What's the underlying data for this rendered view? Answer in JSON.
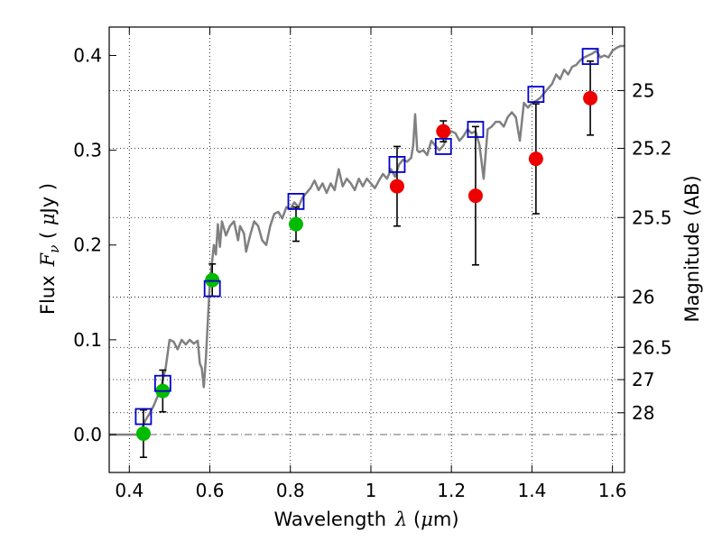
{
  "chart_data": {
    "type": "scatter",
    "xlabel": {
      "prefix": "Wavelength",
      "symbol": "λ",
      "unit_open": " (",
      "unit_symbol": "μ",
      "unit_rest": "m)"
    },
    "ylabel": {
      "prefix": "Flux",
      "symbol": "F",
      "subscript": "ν",
      "unit_open": " ( ",
      "unit_symbol": "μ",
      "unit_rest": "Jy )"
    },
    "y2label": "Magnitude (AB)",
    "xlim": [
      0.35,
      1.63
    ],
    "ylim": [
      -0.04,
      0.43
    ],
    "x_ticks": [
      {
        "value": 0.4,
        "label": "0.4"
      },
      {
        "value": 0.6,
        "label": "0.6"
      },
      {
        "value": 0.8,
        "label": "0.8"
      },
      {
        "value": 1.0,
        "label": "1"
      },
      {
        "value": 1.2,
        "label": "1.2"
      },
      {
        "value": 1.4,
        "label": "1.4"
      },
      {
        "value": 1.6,
        "label": "1.6"
      }
    ],
    "y_ticks": [
      {
        "value": 0.0,
        "label": "0.0"
      },
      {
        "value": 0.1,
        "label": "0.1"
      },
      {
        "value": 0.2,
        "label": "0.2"
      },
      {
        "value": 0.3,
        "label": "0.3"
      },
      {
        "value": 0.4,
        "label": "0.4"
      }
    ],
    "magnitude_ticks": [
      {
        "value": 0.363,
        "label": "25"
      },
      {
        "value": 0.302,
        "label": "25.2"
      },
      {
        "value": 0.229,
        "label": "25.5"
      },
      {
        "value": 0.145,
        "label": "26"
      },
      {
        "value": 0.092,
        "label": "26.5"
      },
      {
        "value": 0.058,
        "label": "27"
      },
      {
        "value": 0.023,
        "label": "28"
      }
    ],
    "grid": true,
    "zero_line": 0.0,
    "model_spectrum": {
      "name": "model SED",
      "color": "#808080",
      "points": [
        [
          0.35,
          0.0
        ],
        [
          0.42,
          0.0
        ],
        [
          0.43,
          0.005
        ],
        [
          0.44,
          0.015
        ],
        [
          0.45,
          0.022
        ],
        [
          0.46,
          0.03
        ],
        [
          0.47,
          0.04
        ],
        [
          0.48,
          0.052
        ],
        [
          0.49,
          0.07
        ],
        [
          0.5,
          0.1
        ],
        [
          0.51,
          0.098
        ],
        [
          0.52,
          0.09
        ],
        [
          0.53,
          0.1
        ],
        [
          0.54,
          0.095
        ],
        [
          0.55,
          0.1
        ],
        [
          0.56,
          0.096
        ],
        [
          0.57,
          0.099
        ],
        [
          0.575,
          0.075
        ],
        [
          0.58,
          0.07
        ],
        [
          0.585,
          0.05
        ],
        [
          0.59,
          0.08
        ],
        [
          0.6,
          0.16
        ],
        [
          0.61,
          0.2
        ],
        [
          0.615,
          0.19
        ],
        [
          0.62,
          0.222
        ],
        [
          0.625,
          0.198
        ],
        [
          0.63,
          0.225
        ],
        [
          0.64,
          0.21
        ],
        [
          0.65,
          0.22
        ],
        [
          0.66,
          0.225
        ],
        [
          0.67,
          0.205
        ],
        [
          0.675,
          0.22
        ],
        [
          0.685,
          0.212
        ],
        [
          0.69,
          0.193
        ],
        [
          0.7,
          0.21
        ],
        [
          0.71,
          0.225
        ],
        [
          0.72,
          0.22
        ],
        [
          0.73,
          0.205
        ],
        [
          0.74,
          0.2
        ],
        [
          0.75,
          0.22
        ],
        [
          0.76,
          0.233
        ],
        [
          0.77,
          0.235
        ],
        [
          0.78,
          0.228
        ],
        [
          0.79,
          0.24
        ],
        [
          0.8,
          0.238
        ],
        [
          0.81,
          0.245
        ],
        [
          0.82,
          0.24
        ],
        [
          0.83,
          0.25
        ],
        [
          0.84,
          0.255
        ],
        [
          0.85,
          0.26
        ],
        [
          0.86,
          0.268
        ],
        [
          0.87,
          0.258
        ],
        [
          0.88,
          0.265
        ],
        [
          0.89,
          0.255
        ],
        [
          0.9,
          0.265
        ],
        [
          0.91,
          0.258
        ],
        [
          0.92,
          0.28
        ],
        [
          0.93,
          0.262
        ],
        [
          0.94,
          0.27
        ],
        [
          0.95,
          0.265
        ],
        [
          0.96,
          0.258
        ],
        [
          0.97,
          0.27
        ],
        [
          0.98,
          0.262
        ],
        [
          0.99,
          0.27
        ],
        [
          1.0,
          0.265
        ],
        [
          1.01,
          0.26
        ],
        [
          1.02,
          0.268
        ],
        [
          1.03,
          0.275
        ],
        [
          1.04,
          0.27
        ],
        [
          1.05,
          0.28
        ],
        [
          1.06,
          0.272
        ],
        [
          1.07,
          0.285
        ],
        [
          1.08,
          0.29
        ],
        [
          1.09,
          0.288
        ],
        [
          1.1,
          0.292
        ],
        [
          1.105,
          0.305
        ],
        [
          1.11,
          0.338
        ],
        [
          1.115,
          0.3
        ],
        [
          1.12,
          0.298
        ],
        [
          1.13,
          0.3
        ],
        [
          1.14,
          0.295
        ],
        [
          1.15,
          0.31
        ],
        [
          1.16,
          0.305
        ],
        [
          1.17,
          0.3
        ],
        [
          1.18,
          0.305
        ],
        [
          1.19,
          0.315
        ],
        [
          1.2,
          0.32
        ],
        [
          1.21,
          0.318
        ],
        [
          1.22,
          0.31
        ],
        [
          1.23,
          0.315
        ],
        [
          1.24,
          0.322
        ],
        [
          1.25,
          0.318
        ],
        [
          1.26,
          0.32
        ],
        [
          1.27,
          0.305
        ],
        [
          1.28,
          0.27
        ],
        [
          1.29,
          0.322
        ],
        [
          1.3,
          0.325
        ],
        [
          1.31,
          0.33
        ],
        [
          1.32,
          0.33
        ],
        [
          1.33,
          0.325
        ],
        [
          1.34,
          0.335
        ],
        [
          1.35,
          0.34
        ],
        [
          1.36,
          0.335
        ],
        [
          1.37,
          0.31
        ],
        [
          1.38,
          0.35
        ],
        [
          1.39,
          0.345
        ],
        [
          1.4,
          0.35
        ],
        [
          1.41,
          0.352
        ],
        [
          1.42,
          0.355
        ],
        [
          1.43,
          0.36
        ],
        [
          1.44,
          0.365
        ],
        [
          1.45,
          0.37
        ],
        [
          1.46,
          0.38
        ],
        [
          1.47,
          0.375
        ],
        [
          1.48,
          0.385
        ],
        [
          1.49,
          0.38
        ],
        [
          1.5,
          0.388
        ],
        [
          1.51,
          0.39
        ],
        [
          1.52,
          0.395
        ],
        [
          1.53,
          0.398
        ],
        [
          1.54,
          0.4
        ],
        [
          1.55,
          0.402
        ],
        [
          1.56,
          0.405
        ],
        [
          1.57,
          0.398
        ],
        [
          1.58,
          0.4
        ],
        [
          1.59,
          0.398
        ],
        [
          1.6,
          0.405
        ],
        [
          1.61,
          0.408
        ],
        [
          1.62,
          0.41
        ],
        [
          1.63,
          0.41
        ]
      ]
    },
    "series": [
      {
        "name": "green",
        "color": "#00bb00",
        "marker": "circle",
        "points": [
          {
            "x": 0.435,
            "y": 0.001,
            "err_low": 0.025,
            "err_high": 0.025
          },
          {
            "x": 0.483,
            "y": 0.046,
            "err_low": 0.022,
            "err_high": 0.022
          },
          {
            "x": 0.606,
            "y": 0.163,
            "err_low": 0.017,
            "err_high": 0.017
          },
          {
            "x": 0.814,
            "y": 0.222,
            "err_low": 0.018,
            "err_high": 0.018
          }
        ]
      },
      {
        "name": "red",
        "color": "#ee0000",
        "marker": "circle",
        "points": [
          {
            "x": 1.065,
            "y": 0.262,
            "err_low": 0.042,
            "err_high": 0.042
          },
          {
            "x": 1.18,
            "y": 0.32,
            "err_low": 0.011,
            "err_high": 0.011
          },
          {
            "x": 1.26,
            "y": 0.252,
            "err_low": 0.073,
            "err_high": 0.073
          },
          {
            "x": 1.41,
            "y": 0.291,
            "err_low": 0.058,
            "err_high": 0.058
          },
          {
            "x": 1.545,
            "y": 0.355,
            "err_low": 0.039,
            "err_high": 0.039
          }
        ]
      },
      {
        "name": "model",
        "color": "#0000cc",
        "marker": "square",
        "points": [
          {
            "x": 0.435,
            "y": 0.019
          },
          {
            "x": 0.483,
            "y": 0.054
          },
          {
            "x": 0.606,
            "y": 0.154
          },
          {
            "x": 0.814,
            "y": 0.246
          },
          {
            "x": 1.065,
            "y": 0.285
          },
          {
            "x": 1.18,
            "y": 0.304
          },
          {
            "x": 1.26,
            "y": 0.322
          },
          {
            "x": 1.41,
            "y": 0.359
          },
          {
            "x": 1.545,
            "y": 0.399
          }
        ]
      }
    ]
  }
}
